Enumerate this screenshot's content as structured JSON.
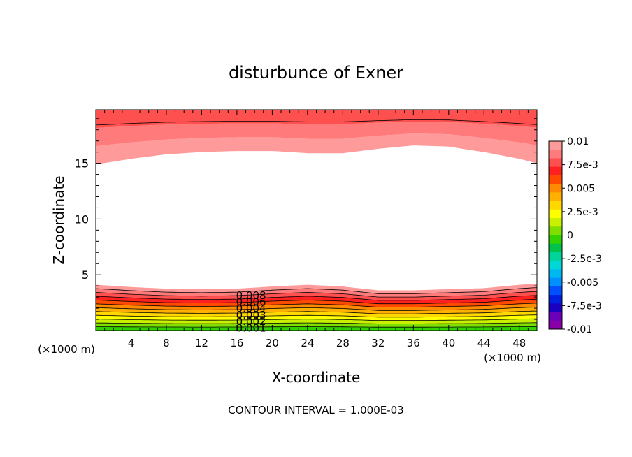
{
  "chart_data": {
    "type": "contour",
    "title": "disturbunce of Exner",
    "xlabel": "X-coordinate",
    "ylabel": "Z-coordinate",
    "x_unit_left": "(×1000 m)",
    "x_unit_right": "(×1000 m)",
    "footer": "CONTOUR INTERVAL = 1.000E-03",
    "xlim": [
      0,
      50
    ],
    "ylim": [
      0,
      19.8
    ],
    "x_ticks": [
      4,
      8,
      12,
      16,
      20,
      24,
      28,
      32,
      36,
      40,
      44,
      48
    ],
    "y_ticks": [
      5,
      10,
      15
    ],
    "contour_interval": 0.001,
    "contour_labels": [
      "0.008",
      "0.006",
      "0.004",
      "0.003",
      "0.002",
      "0.001"
    ],
    "bottom_layer_profile_x": [
      0,
      4,
      8,
      12,
      16,
      20,
      24,
      28,
      32,
      36,
      40,
      44,
      48,
      50
    ],
    "bottom_layer_profile_top_z": [
      4.1,
      3.9,
      3.75,
      3.7,
      3.75,
      3.95,
      4.1,
      3.95,
      3.6,
      3.6,
      3.7,
      3.8,
      4.1,
      4.2
    ],
    "top_layer_profile_x": [
      0,
      4,
      8,
      12,
      16,
      20,
      24,
      28,
      32,
      36,
      40,
      44,
      48,
      50
    ],
    "top_layer_profile_bottom_z": [
      14.9,
      15.4,
      15.8,
      16.0,
      16.1,
      16.1,
      15.9,
      15.9,
      16.3,
      16.6,
      16.5,
      16.0,
      15.4,
      15.0
    ],
    "colorbar": {
      "labels": [
        "0.01",
        "7.5e-3",
        "0.005",
        "2.5e-3",
        "0",
        "-2.5e-3",
        "-0.005",
        "-7.5e-3",
        "-0.01"
      ],
      "colors": [
        "#ff9a9a",
        "#ff7b7b",
        "#ff5050",
        "#ff2020",
        "#ff4a00",
        "#ff8a00",
        "#ffb000",
        "#ffd800",
        "#ffff00",
        "#c8f000",
        "#7fe000",
        "#32d200",
        "#00c24a",
        "#00d49a",
        "#00d8d8",
        "#00b8f0",
        "#0090ff",
        "#0050ff",
        "#0020e0",
        "#1a00c0",
        "#6a00b8",
        "#8a00a8"
      ]
    }
  }
}
